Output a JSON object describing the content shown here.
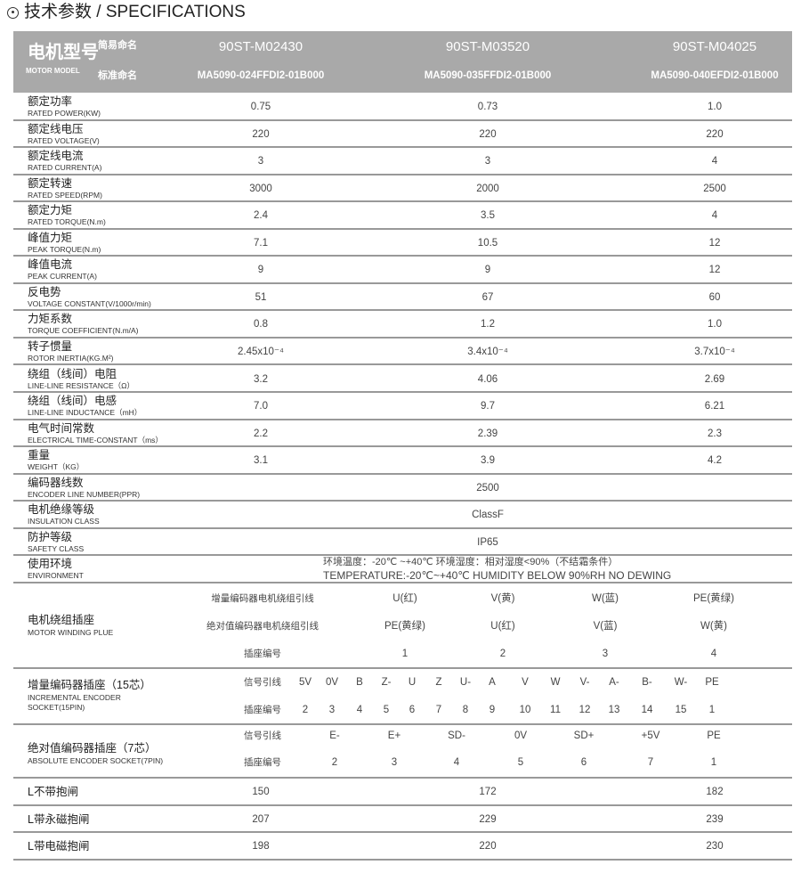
{
  "title": "技术参数 / SPECIFICATIONS",
  "header": {
    "label_cn": "电机型号",
    "label_en": "MOTOR MODEL",
    "short_label": "简易命名",
    "std_label": "标准命名",
    "short_names": [
      "90ST-M02430",
      "90ST-M03520",
      "90ST-M04025"
    ],
    "std_names": [
      "MA5090-024FFDI2-01B000",
      "MA5090-035FFDI2-01B000",
      "MA5090-040EFDI2-01B000"
    ]
  },
  "rows": [
    {
      "cn": "额定功率",
      "en": "RATED POWER(KW)",
      "values": [
        "0.75",
        "0.73",
        "1.0"
      ]
    },
    {
      "cn": "额定线电压",
      "en": "RATED VOLTAGE(V)",
      "values": [
        "220",
        "220",
        "220"
      ]
    },
    {
      "cn": "额定线电流",
      "en": "RATED CURRENT(A)",
      "values": [
        "3",
        "3",
        "4"
      ]
    },
    {
      "cn": "额定转速",
      "en": "RATED SPEED(RPM)",
      "values": [
        "3000",
        "2000",
        "2500"
      ]
    },
    {
      "cn": "额定力矩",
      "en": "RATED TORQUE(N.m)",
      "values": [
        "2.4",
        "3.5",
        "4"
      ]
    },
    {
      "cn": "峰值力矩",
      "en": "PEAK TORQUE(N.m)",
      "values": [
        "7.1",
        "10.5",
        "12"
      ]
    },
    {
      "cn": "峰值电流",
      "en": "PEAK CURRENT(A)",
      "values": [
        "9",
        "9",
        "12"
      ]
    },
    {
      "cn": "反电势",
      "en": "VOLTAGE CONSTANT(V/1000r/min)",
      "values": [
        "51",
        "67",
        "60"
      ]
    },
    {
      "cn": "力矩系数",
      "en": "TORQUE COEFFICIENT(N.m/A)",
      "values": [
        "0.8",
        "1.2",
        "1.0"
      ]
    },
    {
      "cn": "转子惯量",
      "en": "ROTOR INERTIA(KG.M²)",
      "values": [
        "2.45x10⁻⁴",
        "3.4x10⁻⁴",
        "3.7x10⁻⁴"
      ]
    },
    {
      "cn": "绕组（线间）电阻",
      "en": "LINE-LINE RESISTANCE（Ω）",
      "values": [
        "3.2",
        "4.06",
        "2.69"
      ]
    },
    {
      "cn": "绕组（线间）电感",
      "en": "LINE-LINE INDUCTANCE（mH）",
      "values": [
        "7.0",
        "9.7",
        "6.21"
      ]
    },
    {
      "cn": "电气时间常数",
      "en": "ELECTRICAL TIME-CONSTANT（ms）",
      "values": [
        "2.2",
        "2.39",
        "2.3"
      ]
    },
    {
      "cn": "重量",
      "en": "WEIGHT（KG）",
      "values": [
        "3.1",
        "3.9",
        "4.2"
      ]
    },
    {
      "cn": "编码器线数",
      "en": "ENCODER LINE NUMBER(PPR)",
      "values": [
        "2500"
      ]
    },
    {
      "cn": "电机绝缘等级",
      "en": "INSULATION CLASS",
      "values": [
        "ClassF"
      ]
    },
    {
      "cn": "防护等级",
      "en": "SAFETY CLASS",
      "values": [
        "IP65"
      ]
    }
  ],
  "environment": {
    "cn": "使用环境",
    "en": "ENVIRONMENT",
    "line1": "环境温度：-20℃ ~+40℃   环境湿度：相对湿度<90%（不结霜条件）",
    "line2": "TEMPERATURE:-20℃~+40℃   HUMIDITY BELOW 90%RH NO DEWING"
  },
  "winding": {
    "cn": "电机绕组插座",
    "en": "MOTOR WINDING PLUE",
    "lines": [
      {
        "label": "增量编码器电机绕组引线",
        "values": [
          "U(红)",
          "V(黄)",
          "W(蓝)",
          "PE(黄绿)"
        ]
      },
      {
        "label": "绝对值编码器电机绕组引线",
        "values": [
          "PE(黄绿)",
          "U(红)",
          "V(蓝)",
          "W(黄)"
        ]
      },
      {
        "label": "插座编号",
        "values": [
          "1",
          "2",
          "3",
          "4"
        ]
      }
    ]
  },
  "incremental": {
    "cn": "增量编码器插座（15芯）",
    "en1": "INCREMENTAL ENCODER",
    "en2": "SOCKET(15PIN)",
    "lines": [
      {
        "label": "信号引线",
        "values": [
          "5V",
          "0V",
          "B",
          "Z-",
          "U",
          "Z",
          "U-",
          "A",
          "V",
          "W",
          "V-",
          "A-",
          "B-",
          "W-",
          "PE"
        ]
      },
      {
        "label": "插座编号",
        "values": [
          "2",
          "3",
          "4",
          "5",
          "6",
          "7",
          "8",
          "9",
          "10",
          "11",
          "12",
          "13",
          "14",
          "15",
          "1"
        ]
      }
    ]
  },
  "absolute": {
    "cn": "绝对值编码器插座（7芯）",
    "en": "ABSOLUTE ENCODER SOCKET(7PIN)",
    "lines": [
      {
        "label": "信号引线",
        "values": [
          "E-",
          "E+",
          "SD-",
          "0V",
          "SD+",
          "+5V",
          "PE"
        ]
      },
      {
        "label": "插座编号",
        "values": [
          "2",
          "3",
          "4",
          "5",
          "6",
          "7",
          "1"
        ]
      }
    ]
  },
  "length_rows": [
    {
      "cn": "L不带抱闸",
      "values": [
        "150",
        "172",
        "182"
      ]
    },
    {
      "cn": "L带永磁抱闸",
      "values": [
        "207",
        "229",
        "239"
      ]
    },
    {
      "cn": "L带电磁抱闸",
      "values": [
        "198",
        "220",
        "230"
      ]
    }
  ]
}
